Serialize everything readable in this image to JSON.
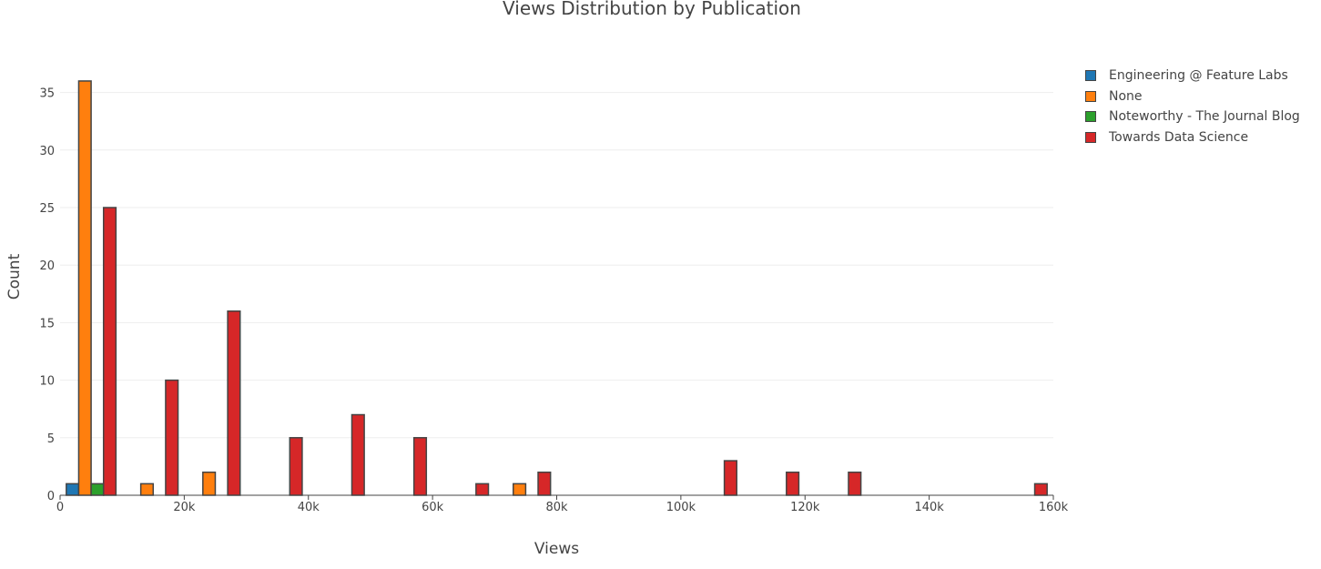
{
  "chart_data": {
    "type": "bar",
    "title": "Views Distribution by Publication",
    "xlabel": "Views",
    "ylabel": "Count",
    "xlim": [
      0,
      160000
    ],
    "ylim": [
      0,
      37.5
    ],
    "x_tick_values": [
      0,
      20000,
      40000,
      60000,
      80000,
      100000,
      120000,
      140000,
      160000
    ],
    "x_tick_labels": [
      "0",
      "20k",
      "40k",
      "60k",
      "80k",
      "100k",
      "120k",
      "140k",
      "160k"
    ],
    "y_tick_values": [
      0,
      5,
      10,
      15,
      20,
      25,
      30,
      35
    ],
    "y_tick_labels": [
      "0",
      "5",
      "10",
      "15",
      "20",
      "25",
      "30",
      "35"
    ],
    "grid": true,
    "legend_position": "top-right",
    "bin_size": 10000,
    "bin_starts": [
      0,
      10000,
      20000,
      30000,
      40000,
      50000,
      60000,
      70000,
      80000,
      90000,
      100000,
      110000,
      120000,
      130000,
      140000,
      150000
    ],
    "series": [
      {
        "name": "Engineering @ Feature Labs",
        "color": "#1f77b4",
        "values": [
          1,
          0,
          0,
          0,
          0,
          0,
          0,
          0,
          0,
          0,
          0,
          0,
          0,
          0,
          0,
          0
        ]
      },
      {
        "name": "None",
        "color": "#ff7f0e",
        "values": [
          36,
          1,
          2,
          0,
          0,
          0,
          0,
          1,
          0,
          0,
          0,
          0,
          0,
          0,
          0,
          0
        ]
      },
      {
        "name": "Noteworthy - The Journal Blog",
        "color": "#2ca02c",
        "values": [
          1,
          0,
          0,
          0,
          0,
          0,
          0,
          0,
          0,
          0,
          0,
          0,
          0,
          0,
          0,
          0
        ]
      },
      {
        "name": "Towards Data Science",
        "color": "#d62728",
        "values": [
          25,
          10,
          16,
          5,
          7,
          5,
          1,
          2,
          0,
          0,
          3,
          2,
          2,
          0,
          0,
          1
        ]
      }
    ]
  }
}
